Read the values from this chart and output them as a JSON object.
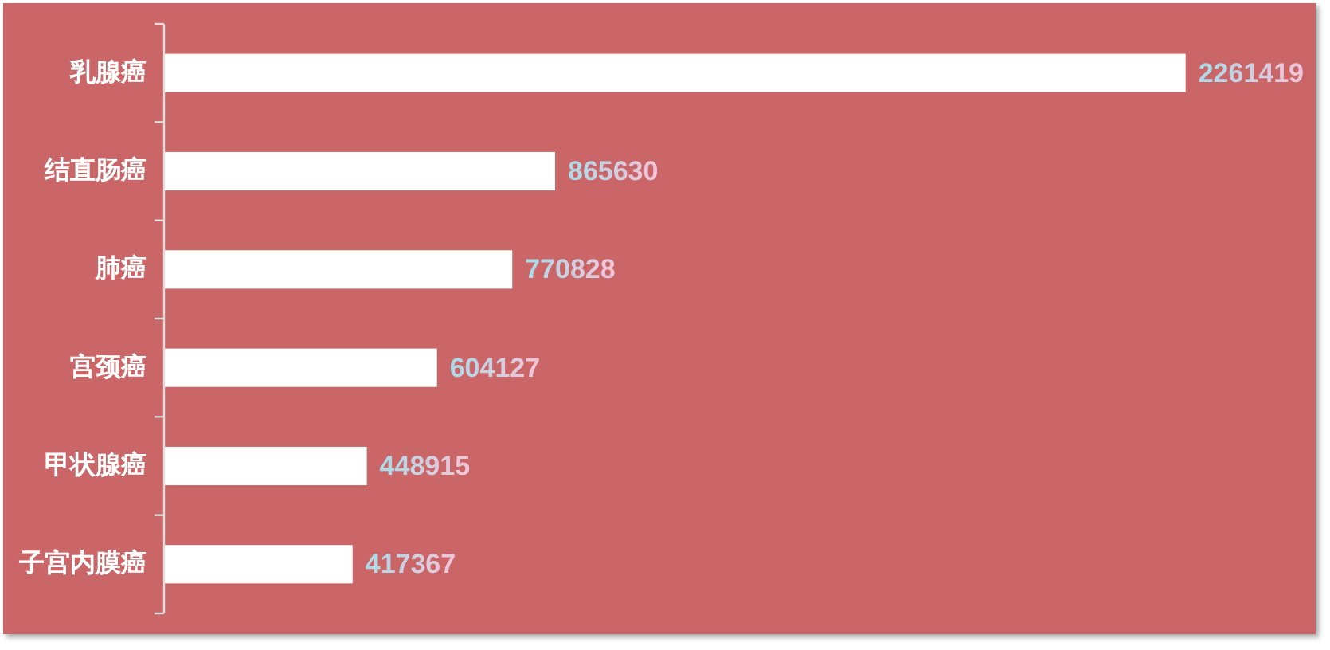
{
  "chart_data": {
    "type": "bar",
    "orientation": "horizontal",
    "categories": [
      "乳腺癌",
      "结直肠癌",
      "肺癌",
      "宫颈癌",
      "甲状腺癌",
      "子宫内膜癌"
    ],
    "values": [
      2261419,
      865630,
      770828,
      604127,
      448915,
      417367
    ],
    "color": "#ffffff",
    "data_labels": true
  }
}
